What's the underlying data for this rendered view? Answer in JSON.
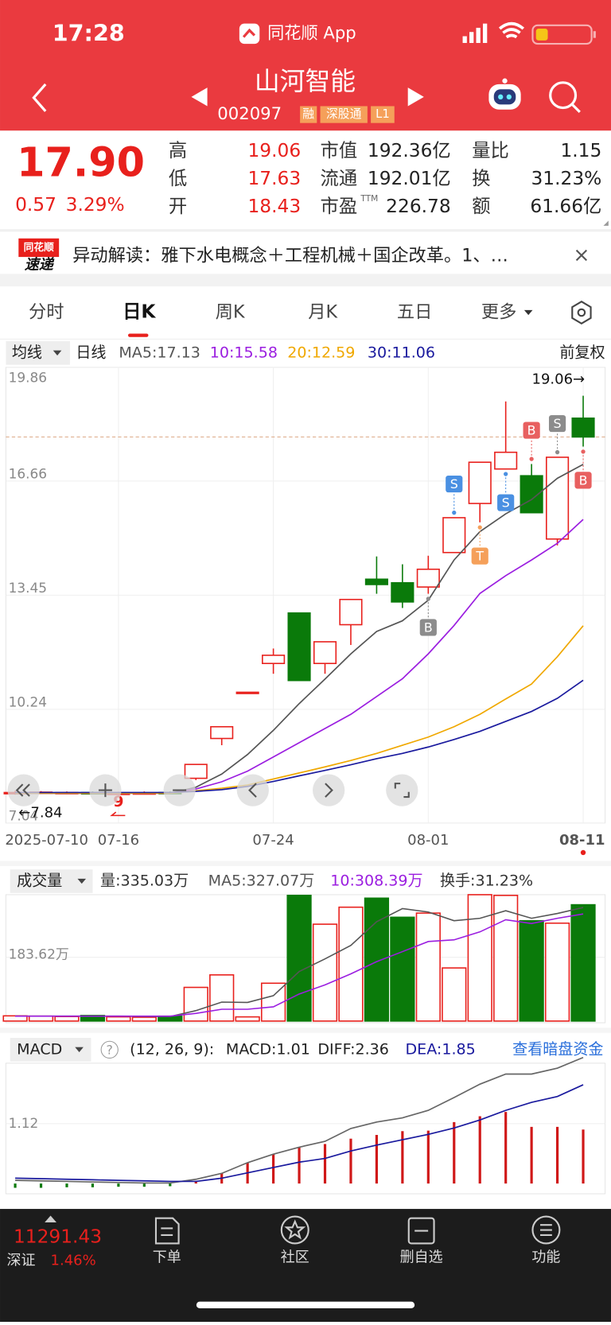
{
  "status_bar": {
    "time": "17:28",
    "app": "同花顺 App"
  },
  "header": {
    "name": "山河智能",
    "code": "002097",
    "tags": [
      "融",
      "深股通",
      "L1"
    ]
  },
  "quote": {
    "price": "17.90",
    "change": "0.57",
    "change_pct": "3.29%",
    "fields": [
      {
        "label": "高",
        "value": "19.06"
      },
      {
        "label": "低",
        "value": "17.63"
      },
      {
        "label": "开",
        "value": "18.43"
      },
      {
        "label": "市值",
        "value": "192.36亿"
      },
      {
        "label": "流通",
        "value": "192.01亿"
      },
      {
        "label": "市盈",
        "sup": "TTM",
        "value": "226.78"
      },
      {
        "label": "量比",
        "value": "1.15"
      },
      {
        "label": "换",
        "value": "31.23%"
      },
      {
        "label": "额",
        "value": "61.66亿"
      }
    ]
  },
  "news": {
    "logo": [
      "同花顺",
      "速递"
    ],
    "text": "异动解读：雅下水电概念＋工程机械＋国企改革。1、…"
  },
  "tabs": [
    "分时",
    "日K",
    "周K",
    "月K",
    "五日",
    "更多"
  ],
  "kline": {
    "selector": "均线",
    "period": "日线",
    "adjust": "前复权",
    "ylim": [
      7.04,
      19.86
    ],
    "yticks": [
      19.86,
      16.66,
      13.45,
      10.24,
      7.04
    ],
    "categories": [
      "2025-07-10",
      null,
      null,
      null,
      "07-16",
      null,
      null,
      null,
      null,
      null,
      "07-24",
      null,
      null,
      null,
      null,
      null,
      "08-01",
      null,
      null,
      null,
      null,
      null,
      "08-11"
    ],
    "open": [
      7.88,
      7.9,
      7.89,
      7.9,
      7.86,
      7.88,
      7.9,
      8.3,
      9.42,
      10.72,
      11.53,
      12.95,
      11.53,
      12.62,
      13.9,
      13.8,
      13.68,
      14.65,
      16.03,
      17.0,
      16.81,
      15.03,
      18.43
    ],
    "close": [
      7.9,
      7.91,
      7.9,
      7.86,
      7.88,
      7.89,
      7.87,
      8.69,
      9.75,
      10.72,
      11.76,
      11.05,
      12.14,
      13.33,
      13.75,
      13.26,
      14.18,
      15.63,
      17.19,
      17.47,
      15.77,
      17.33,
      17.9
    ],
    "high": [
      7.95,
      7.94,
      7.93,
      7.93,
      7.92,
      7.93,
      7.93,
      8.69,
      9.75,
      10.72,
      11.95,
      12.95,
      12.14,
      13.33,
      14.54,
      14.32,
      14.56,
      15.63,
      17.19,
      18.9,
      17.14,
      17.33,
      19.06
    ],
    "low": [
      7.84,
      7.86,
      7.86,
      7.85,
      7.85,
      7.86,
      7.85,
      8.25,
      9.23,
      10.72,
      11.24,
      11.05,
      11.24,
      12.05,
      13.49,
      13.09,
      13.49,
      14.65,
      15.5,
      17.0,
      15.77,
      14.85,
      17.63
    ],
    "ma": [
      {
        "label": "MA5:17.13",
        "color": "#555555",
        "values": [
          7.87,
          7.88,
          7.88,
          7.88,
          7.89,
          7.89,
          7.88,
          8.05,
          8.42,
          8.97,
          9.65,
          10.4,
          11.09,
          11.8,
          12.43,
          12.73,
          13.31,
          14.44,
          15.24,
          15.74,
          16.14,
          16.74,
          17.13
        ]
      },
      {
        "label": "10:15.58",
        "color": "#9b1ee0",
        "values": [
          7.88,
          7.88,
          7.88,
          7.88,
          7.88,
          7.88,
          7.88,
          8.0,
          8.2,
          8.5,
          8.9,
          9.3,
          9.7,
          10.1,
          10.6,
          11.1,
          11.8,
          12.6,
          13.5,
          14.0,
          14.44,
          14.91,
          15.58
        ]
      },
      {
        "label": "20:12.59",
        "color": "#f0a800",
        "values": [
          7.88,
          7.88,
          7.88,
          7.88,
          7.88,
          7.88,
          7.88,
          7.95,
          8.02,
          8.11,
          8.28,
          8.45,
          8.62,
          8.8,
          9.0,
          9.23,
          9.46,
          9.75,
          10.1,
          10.53,
          10.95,
          11.72,
          12.59
        ]
      },
      {
        "label": "30:11.06",
        "color": "#1a1a9e",
        "values": [
          7.9,
          7.9,
          7.9,
          7.9,
          7.9,
          7.9,
          7.9,
          7.93,
          7.98,
          8.07,
          8.21,
          8.37,
          8.52,
          8.68,
          8.85,
          9.0,
          9.18,
          9.39,
          9.62,
          9.9,
          10.18,
          10.55,
          11.06
        ]
      }
    ],
    "high_label": "19.06→",
    "low_label": "←7.84",
    "nine": {
      "index": 4,
      "text": "9"
    },
    "signals": [
      {
        "index": 16,
        "text": "B",
        "pos": "below",
        "color": "#8c8c8c"
      },
      {
        "index": 17,
        "text": "S",
        "pos": "above",
        "color": "#4a90e2"
      },
      {
        "index": 18,
        "text": "T",
        "pos": "below",
        "color": "#f5a05a"
      },
      {
        "index": 19,
        "text": "S",
        "pos": "below",
        "color": "#4a90e2"
      },
      {
        "index": 20,
        "text": "B",
        "pos": "above",
        "color": "#e86060"
      },
      {
        "index": 21,
        "text": "S",
        "pos": "above",
        "color": "#8c8c8c"
      },
      {
        "index": 22,
        "text": "B",
        "pos": "below",
        "color": "#e86060"
      }
    ]
  },
  "volume": {
    "selector": "成交量",
    "label": "量:335.03万",
    "turnover": "换手:31.23%",
    "ylim": [
      0,
      364
    ],
    "yticks": [
      {
        "value": 183.62,
        "label": "183.62万"
      }
    ],
    "values": [
      15,
      14,
      13,
      16,
      12,
      11,
      14,
      97,
      133,
      12,
      109,
      362,
      279,
      328,
      354,
      299,
      311,
      153,
      364,
      362,
      289,
      282,
      335.03
    ],
    "ma": [
      {
        "label": "MA5:327.07万",
        "color": "#555555",
        "values": [
          14,
          14,
          14,
          14,
          14,
          13.6,
          13.2,
          30,
          54.6,
          53.6,
          73,
          142.6,
          179,
          218,
          286,
          324,
          314,
          289,
          296,
          318,
          296,
          310,
          327.07
        ]
      },
      {
        "label": "10:308.39万",
        "color": "#9b1ee0",
        "values": [
          14,
          14,
          14,
          14,
          14,
          14,
          14,
          22,
          34,
          34,
          41,
          78,
          104,
          136,
          171,
          200,
          229,
          234,
          257,
          292,
          281,
          296,
          308.39
        ]
      }
    ]
  },
  "macd": {
    "selector": "MACD",
    "help": "?",
    "params": "(12, 26, 9):",
    "link": "查看暗盘资金",
    "ylim": [
      -0.16,
      2.6
    ],
    "yticks": [
      1.12
    ],
    "macd": {
      "label": "MACD:1.01",
      "values": [
        -0.08,
        -0.08,
        -0.07,
        -0.07,
        -0.06,
        -0.06,
        -0.05,
        0.05,
        0.19,
        0.39,
        0.55,
        0.68,
        0.74,
        0.84,
        0.91,
        0.98,
        0.99,
        1.15,
        1.26,
        1.34,
        1.06,
        1.06,
        1.01
      ]
    },
    "diff": {
      "label": "DIFF:2.36",
      "color": "#666666",
      "values": [
        0.06,
        0.05,
        0.04,
        0.03,
        0.02,
        0.01,
        0.01,
        0.08,
        0.19,
        0.39,
        0.55,
        0.68,
        0.79,
        1.03,
        1.15,
        1.23,
        1.37,
        1.61,
        1.86,
        2.05,
        2.05,
        2.16,
        2.36
      ]
    },
    "dea": {
      "label": "DEA:1.85",
      "color": "#1a1a9e",
      "values": [
        0.1,
        0.09,
        0.08,
        0.07,
        0.06,
        0.05,
        0.04,
        0.04,
        0.1,
        0.2,
        0.3,
        0.4,
        0.47,
        0.61,
        0.72,
        0.82,
        0.92,
        1.04,
        1.19,
        1.37,
        1.52,
        1.63,
        1.85
      ]
    }
  },
  "bottom": {
    "index": {
      "value": "11291.43",
      "name": "深证",
      "change": "1.46%"
    },
    "items": [
      "下单",
      "社区",
      "删自选",
      "功能"
    ]
  }
}
